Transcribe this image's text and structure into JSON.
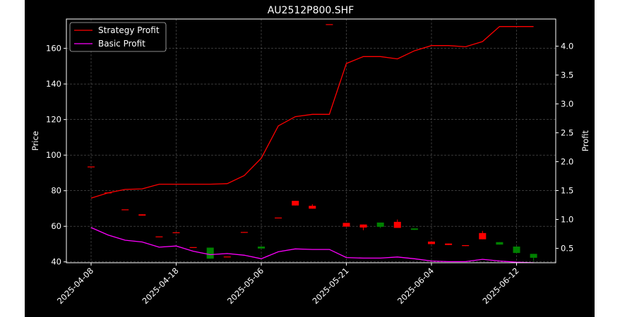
{
  "chart_data": {
    "type": "candlestick+line",
    "title": "AU2512P800.SHF",
    "xlabel": "",
    "ylabel_left": "Price",
    "ylabel_right": "Profit",
    "ylim_left": [
      39.5,
      176.5
    ],
    "ylim_right": [
      0.25,
      4.47
    ],
    "yticks_left": [
      "40",
      "60",
      "80",
      "100",
      "120",
      "140",
      "160"
    ],
    "yticks_right": [
      "0.5",
      "1.0",
      "1.5",
      "2.0",
      "2.5",
      "3.0",
      "3.5",
      "4.0"
    ],
    "xticks": [
      {
        "label": "2025-04-08",
        "index": 0
      },
      {
        "label": "2025-04-18",
        "index": 5
      },
      {
        "label": "2025-05-06",
        "index": 10
      },
      {
        "label": "2025-05-21",
        "index": 15
      },
      {
        "label": "2025-06-04",
        "index": 20
      },
      {
        "label": "2025-06-12",
        "index": 25
      }
    ],
    "grid": true,
    "legend": {
      "position": "top-left",
      "entries": [
        {
          "label": "Strategy Profit",
          "color": "#ff0000"
        },
        {
          "label": "Basic Profit",
          "color": "#ff00ff"
        }
      ]
    },
    "colors": {
      "up": "#ff0000",
      "down": "#008000",
      "background": "#000000",
      "text": "#ffffff"
    },
    "candles": [
      {
        "i": 0,
        "open": 93.6,
        "close": 93.6,
        "high": 93.6,
        "low": 93.6
      },
      {
        "i": 1,
        "open": 79.0,
        "close": 79.0,
        "high": 79.0,
        "low": 79.0
      },
      {
        "i": 2,
        "open": 69.5,
        "close": 69.5,
        "high": 69.5,
        "low": 69.5
      },
      {
        "i": 3,
        "open": 66.0,
        "close": 66.7,
        "high": 66.7,
        "low": 66.0
      },
      {
        "i": 4,
        "open": 54.3,
        "close": 54.3,
        "high": 54.3,
        "low": 54.3
      },
      {
        "i": 5,
        "open": 56.6,
        "close": 56.6,
        "high": 56.6,
        "low": 56.6
      },
      {
        "i": 6,
        "open": 48.3,
        "close": 48.3,
        "high": 48.3,
        "low": 48.3
      },
      {
        "i": 7,
        "open": 48.0,
        "close": 41.8,
        "high": 48.0,
        "low": 41.8
      },
      {
        "i": 8,
        "open": 43.0,
        "close": 43.0,
        "high": 43.0,
        "low": 43.0
      },
      {
        "i": 9,
        "open": 56.4,
        "close": 56.8,
        "high": 56.8,
        "low": 56.4
      },
      {
        "i": 10,
        "open": 48.6,
        "close": 47.5,
        "high": 48.6,
        "low": 47.5
      },
      {
        "i": 11,
        "open": 64.9,
        "close": 64.9,
        "high": 64.9,
        "low": 64.9
      },
      {
        "i": 12,
        "open": 71.7,
        "close": 74.3,
        "high": 74.3,
        "low": 71.7
      },
      {
        "i": 13,
        "open": 69.9,
        "close": 71.5,
        "high": 72.4,
        "low": 69.9
      },
      {
        "i": 14,
        "open": 173.6,
        "close": 173.6,
        "high": 173.6,
        "low": 173.6
      },
      {
        "i": 15,
        "open": 59.8,
        "close": 61.9,
        "high": 61.9,
        "low": 59.8
      },
      {
        "i": 16,
        "open": 59.3,
        "close": 61.0,
        "high": 61.0,
        "low": 57.8
      },
      {
        "i": 17,
        "open": 62.1,
        "close": 59.7,
        "high": 62.1,
        "low": 59.0
      },
      {
        "i": 18,
        "open": 59.1,
        "close": 62.5,
        "high": 63.8,
        "low": 59.1
      },
      {
        "i": 19,
        "open": 58.8,
        "close": 58.0,
        "high": 58.8,
        "low": 58.0
      },
      {
        "i": 20,
        "open": 50.0,
        "close": 51.4,
        "high": 51.4,
        "low": 50.0
      },
      {
        "i": 21,
        "open": 49.5,
        "close": 50.3,
        "high": 50.3,
        "low": 49.5
      },
      {
        "i": 22,
        "open": 48.9,
        "close": 49.4,
        "high": 49.4,
        "low": 48.9
      },
      {
        "i": 23,
        "open": 52.7,
        "close": 56.2,
        "high": 57.4,
        "low": 52.7
      },
      {
        "i": 24,
        "open": 51.1,
        "close": 49.7,
        "high": 51.1,
        "low": 49.7
      },
      {
        "i": 25,
        "open": 48.6,
        "close": 45.0,
        "high": 48.6,
        "low": 45.0
      },
      {
        "i": 26,
        "open": 44.5,
        "close": 42.3,
        "high": 44.5,
        "low": 40.6
      }
    ],
    "series": [
      {
        "name": "Strategy Profit",
        "axis": "right",
        "color": "#ff0000",
        "values": [
          1.37,
          1.46,
          1.52,
          1.53,
          1.61,
          1.61,
          1.61,
          1.61,
          1.62,
          1.76,
          2.06,
          2.62,
          2.78,
          2.82,
          2.82,
          3.7,
          3.82,
          3.82,
          3.78,
          3.92,
          4.01,
          4.01,
          3.99,
          4.08,
          4.34,
          4.34,
          4.34
        ]
      },
      {
        "name": "Basic Profit",
        "axis": "right",
        "color": "#ff00ff",
        "values": [
          0.86,
          0.73,
          0.64,
          0.61,
          0.52,
          0.54,
          0.45,
          0.39,
          0.41,
          0.38,
          0.32,
          0.44,
          0.49,
          0.48,
          0.48,
          0.34,
          0.33,
          0.33,
          0.35,
          0.32,
          0.28,
          0.27,
          0.27,
          0.31,
          0.28,
          0.26,
          0.25
        ]
      }
    ]
  }
}
